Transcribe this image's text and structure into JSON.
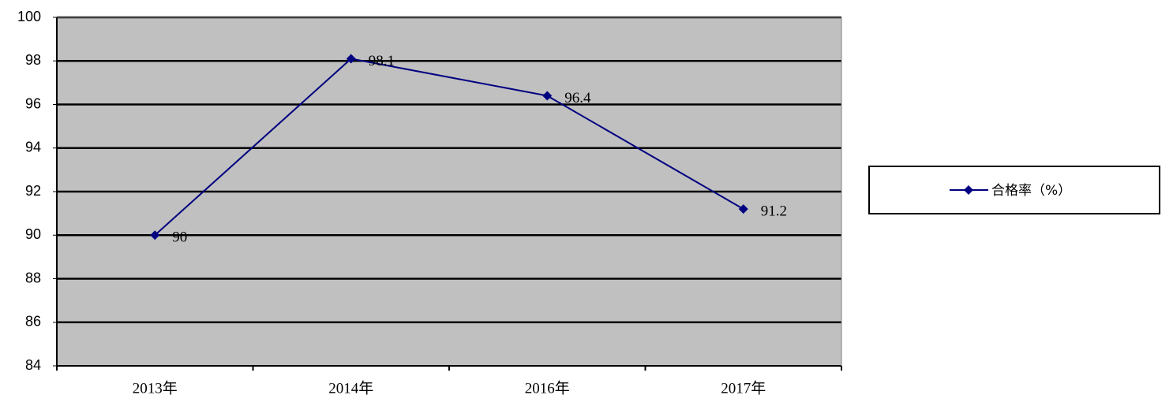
{
  "chart_data": {
    "type": "line",
    "categories": [
      "2013年",
      "2014年",
      "2016年",
      "2017年"
    ],
    "series": [
      {
        "name": "合格率（%）",
        "color": "#000080",
        "values": [
          90,
          98.1,
          96.4,
          91.2
        ]
      }
    ],
    "ylim": [
      84,
      100
    ],
    "yticks": [
      84,
      86,
      88,
      90,
      92,
      94,
      96,
      98,
      100
    ],
    "grid": true,
    "legend": "right",
    "background": "#c0c0c0"
  }
}
